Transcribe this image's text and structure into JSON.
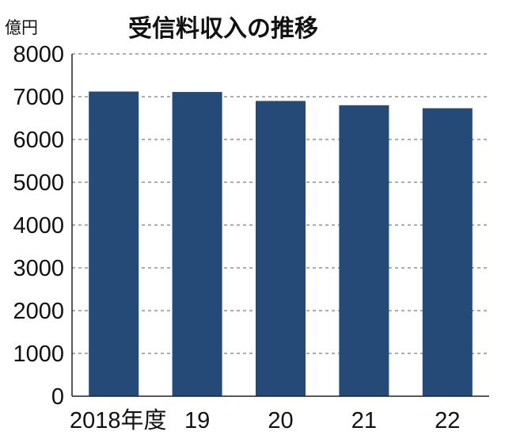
{
  "chart_data": {
    "type": "bar",
    "title": "受信料収入の推移",
    "unit_label": "億円",
    "categories": [
      "2018年度",
      "19",
      "20",
      "21",
      "22"
    ],
    "values": [
      7120,
      7110,
      6900,
      6800,
      6730
    ],
    "ylim": [
      0,
      8000
    ],
    "yticks": [
      0,
      1000,
      2000,
      3000,
      4000,
      5000,
      6000,
      7000,
      8000
    ],
    "grid": true,
    "bar_color": "#254a77"
  }
}
